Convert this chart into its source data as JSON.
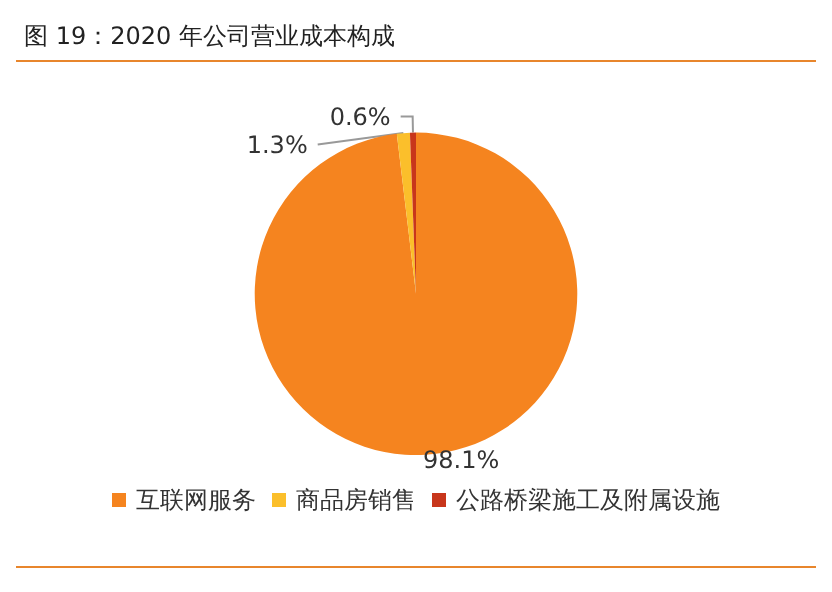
{
  "chart_data": {
    "type": "pie",
    "title": "图 19：2020 年公司营业成本构成",
    "categories": [
      "互联网服务",
      "商品房销售",
      "公路桥梁施工及附属设施"
    ],
    "values": [
      98.1,
      1.3,
      0.6
    ],
    "colors": [
      "#f5841f",
      "#fbbf2b",
      "#c8361b"
    ],
    "value_labels": [
      "98.1%",
      "1.3%",
      "0.6%"
    ],
    "legend": "bottom"
  }
}
